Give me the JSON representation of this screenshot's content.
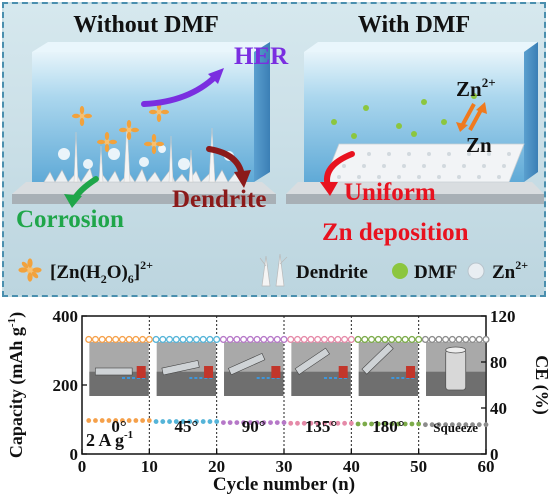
{
  "schematic": {
    "left_title": "Without DMF",
    "right_title": "With DMF",
    "left_labels": {
      "her": "HER",
      "dendrite": "Dendrite",
      "corrosion": "Corrosion"
    },
    "right_labels": {
      "zn_ion_base": "Zn",
      "zn_ion_sup": "2+",
      "zn_metal": "Zn",
      "uniform": "Uniform",
      "deposition": "Zn deposition"
    },
    "legend": {
      "complex_pre": "[Zn(H",
      "complex_sub_2": "2",
      "complex_mid": "O)",
      "complex_sub_6": "6",
      "complex_post": "]",
      "complex_sup": "2+",
      "dendrite": "Dendrite",
      "dmf": "DMF",
      "zn_base": "Zn",
      "zn_sup": "2+"
    },
    "colors": {
      "her": "#7a2ee0",
      "dendrite": "#8b1a1a",
      "corrosion": "#1fa64a",
      "uniform": "#e8121f",
      "zn_arrow": "#f07a1e",
      "dmf": "#8cc63f",
      "water": "#8fc6e6",
      "complex": "#f2a23c"
    }
  },
  "chart_data": {
    "type": "scatter",
    "xlabel": "Cycle number (n)",
    "ylabel_left": "Capacity (mAh g-1)",
    "ylabel_left_pre": "Capacity (mAh g",
    "ylabel_left_sup": "-1",
    "ylabel_left_post": ")",
    "ylabel_right": "CE (%)",
    "xlim": [
      0,
      60
    ],
    "ylim_left": [
      0,
      400
    ],
    "ylim_right": [
      0,
      120
    ],
    "x_ticks": [
      "0",
      "10",
      "20",
      "30",
      "40",
      "50",
      "60"
    ],
    "y_ticks_left": [
      "0",
      "200",
      "400"
    ],
    "y_ticks_right": [
      "0",
      "40",
      "80",
      "120"
    ],
    "rate_label": "2  A g-1",
    "rate_label_pre": "2  A g",
    "rate_label_sup": "-1",
    "segment_dividers": [
      10,
      20,
      30,
      40,
      50
    ],
    "segments": [
      {
        "start": 1,
        "end": 10,
        "capacity": 97,
        "ce": 99.6,
        "color": "#f5a04a",
        "label": "0°"
      },
      {
        "start": 11,
        "end": 20,
        "capacity": 94,
        "ce": 99.6,
        "color": "#55b4d8",
        "label": "45°"
      },
      {
        "start": 21,
        "end": 30,
        "capacity": 91,
        "ce": 99.6,
        "color": "#b678c8",
        "label": "90°"
      },
      {
        "start": 31,
        "end": 40,
        "capacity": 89,
        "ce": 99.6,
        "color": "#e58aa8",
        "label": "135°"
      },
      {
        "start": 41,
        "end": 50,
        "capacity": 87,
        "ce": 99.6,
        "color": "#7cab4a",
        "label": "180°"
      },
      {
        "start": 51,
        "end": 60,
        "capacity": 85,
        "ce": 99.6,
        "color": "#8c8c8c",
        "label": "Squeeze"
      }
    ]
  }
}
